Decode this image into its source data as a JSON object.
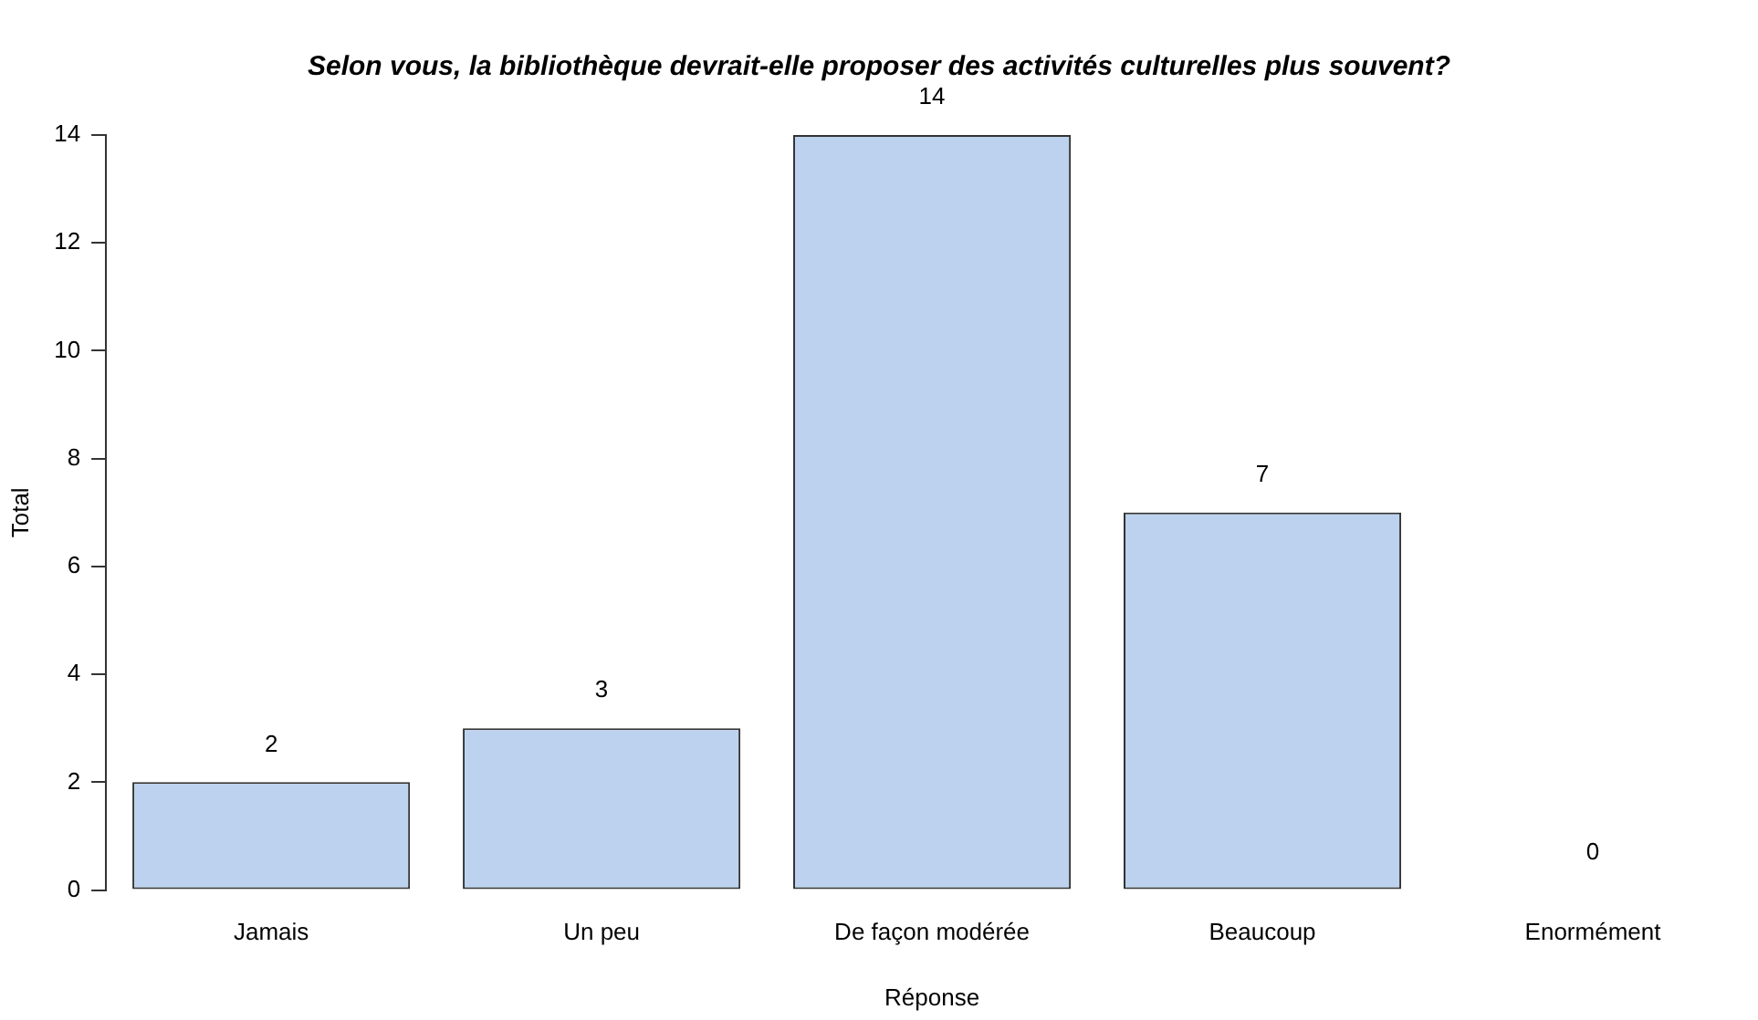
{
  "chart_data": {
    "type": "bar",
    "title": "Selon vous, la bibliothèque devrait-elle proposer des activités culturelles plus souvent?",
    "xlabel": "Réponse",
    "ylabel": "Total",
    "categories": [
      "Jamais",
      "Un peu",
      "De façon modérée",
      "Beaucoup",
      "Enormément"
    ],
    "values": [
      2,
      3,
      14,
      7,
      0
    ],
    "color": "#bcd2ee",
    "ylim": [
      0,
      14
    ],
    "yticks": [
      0,
      2,
      4,
      6,
      8,
      10,
      12,
      14
    ],
    "grid": false,
    "legend": false,
    "data_labels": true
  }
}
